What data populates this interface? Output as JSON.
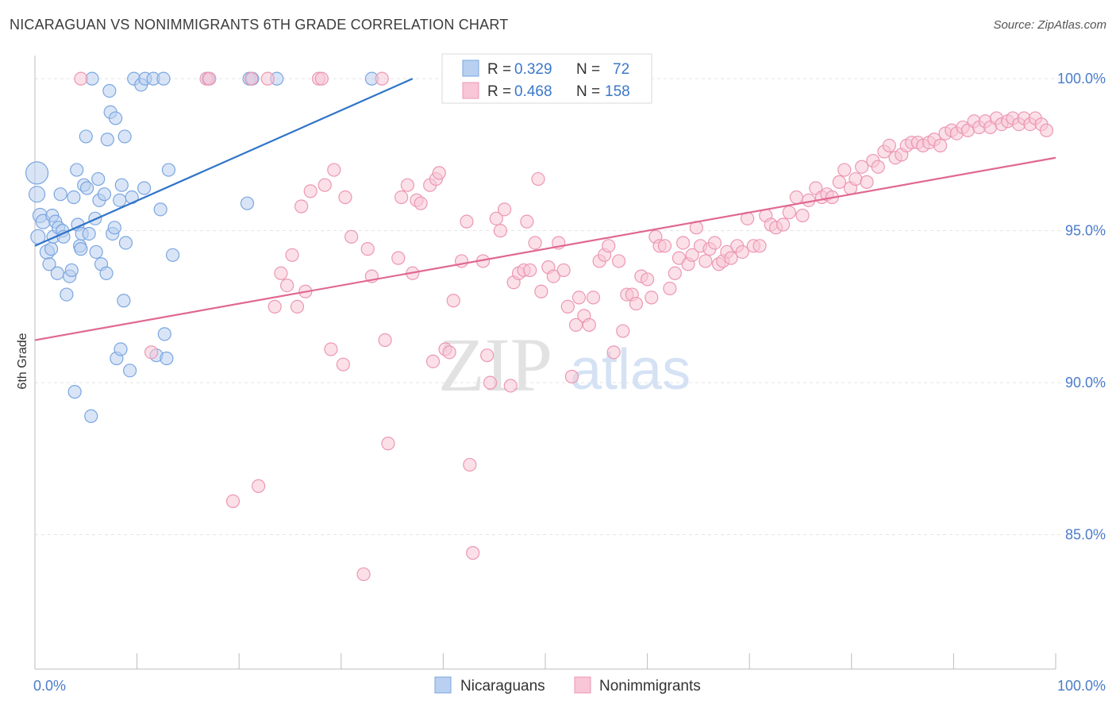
{
  "title": "NICARAGUAN VS NONIMMIGRANTS 6TH GRADE CORRELATION CHART",
  "source": "Source: ZipAtlas.com",
  "colors": {
    "blue": "#7aa6e0",
    "blue_fill": "#b9d0f0",
    "blue_line": "#2f74c8",
    "pink": "#ec97b4",
    "pink_fill": "#f8c6d6",
    "pink_line": "#e06892",
    "tick_text": "#4a7cc9",
    "grid": "#e3e3e3"
  },
  "legend": {
    "rows": [
      {
        "r_label": "R =",
        "r_value": "0.329",
        "n_label": "N =",
        "n_value": "72"
      },
      {
        "r_label": "R =",
        "r_value": "0.468",
        "n_label": "N =",
        "n_value": "158"
      }
    ]
  },
  "watermark": {
    "zip": "ZIP",
    "atlas": "atlas"
  },
  "chart_data": {
    "type": "scatter",
    "xlabel": "",
    "ylabel": "6th Grade",
    "xlim": [
      0,
      100
    ],
    "ylim": [
      80.5,
      100.5
    ],
    "x_tick_labels": [
      "0.0%",
      "100.0%"
    ],
    "y_ticks": [
      85,
      90,
      95,
      100
    ],
    "y_tick_labels": [
      "85.0%",
      "90.0%",
      "95.0%",
      "100.0%"
    ],
    "grid": true,
    "legend_position": "bottom-center",
    "series": [
      {
        "name": "Nicaraguans",
        "r": 0.329,
        "n": 72,
        "trend": {
          "x0": 0,
          "y0": 94.5,
          "x1": 37,
          "y1": 100.0
        },
        "points": [
          [
            0.2,
            96.9,
            14
          ],
          [
            0.2,
            96.2,
            10
          ],
          [
            0.3,
            94.8,
            9
          ],
          [
            0.5,
            95.5,
            9
          ],
          [
            0.8,
            95.3,
            9
          ],
          [
            1.2,
            94.3,
            9
          ],
          [
            1.4,
            93.9,
            8
          ],
          [
            1.6,
            94.4,
            8
          ],
          [
            1.7,
            95.5,
            8
          ],
          [
            1.8,
            94.8,
            8
          ],
          [
            2.0,
            95.3,
            8
          ],
          [
            2.2,
            93.6,
            8
          ],
          [
            2.3,
            95.1,
            8
          ],
          [
            2.5,
            96.2,
            8
          ],
          [
            2.7,
            95.0,
            8
          ],
          [
            2.8,
            94.8,
            8
          ],
          [
            3.1,
            92.9,
            8
          ],
          [
            3.4,
            93.5,
            8
          ],
          [
            3.6,
            93.7,
            8
          ],
          [
            3.8,
            96.1,
            8
          ],
          [
            3.9,
            89.7,
            8
          ],
          [
            4.1,
            97.0,
            8
          ],
          [
            4.2,
            95.2,
            8
          ],
          [
            4.4,
            94.5,
            8
          ],
          [
            4.5,
            94.4,
            8
          ],
          [
            4.6,
            94.9,
            8
          ],
          [
            4.8,
            96.5,
            8
          ],
          [
            5.0,
            98.1,
            8
          ],
          [
            5.1,
            96.4,
            8
          ],
          [
            5.3,
            94.9,
            8
          ],
          [
            5.5,
            88.9,
            8
          ],
          [
            5.6,
            100.0,
            8
          ],
          [
            5.9,
            95.4,
            8
          ],
          [
            6.0,
            94.3,
            8
          ],
          [
            6.2,
            96.7,
            8
          ],
          [
            6.3,
            96.0,
            8
          ],
          [
            6.5,
            93.9,
            8
          ],
          [
            6.8,
            96.2,
            8
          ],
          [
            7.0,
            93.6,
            8
          ],
          [
            7.1,
            98.0,
            8
          ],
          [
            7.3,
            99.6,
            8
          ],
          [
            7.4,
            98.9,
            8
          ],
          [
            7.6,
            94.9,
            8
          ],
          [
            7.8,
            95.1,
            8
          ],
          [
            7.9,
            98.7,
            8
          ],
          [
            8.0,
            90.8,
            8
          ],
          [
            8.3,
            96.0,
            8
          ],
          [
            8.4,
            91.1,
            8
          ],
          [
            8.5,
            96.5,
            8
          ],
          [
            8.7,
            92.7,
            8
          ],
          [
            8.8,
            98.1,
            8
          ],
          [
            8.9,
            94.6,
            8
          ],
          [
            9.3,
            90.4,
            8
          ],
          [
            9.5,
            96.1,
            8
          ],
          [
            9.7,
            100.0,
            8
          ],
          [
            10.4,
            99.8,
            8
          ],
          [
            10.7,
            96.4,
            8
          ],
          [
            10.8,
            100.0,
            8
          ],
          [
            11.6,
            100.0,
            8
          ],
          [
            11.9,
            90.9,
            8
          ],
          [
            12.3,
            95.7,
            8
          ],
          [
            12.6,
            100.0,
            8
          ],
          [
            12.7,
            91.6,
            8
          ],
          [
            12.9,
            90.8,
            8
          ],
          [
            13.1,
            97.0,
            8
          ],
          [
            13.5,
            94.2,
            8
          ],
          [
            17.0,
            100.0,
            8
          ],
          [
            20.8,
            95.9,
            8
          ],
          [
            21.0,
            100.0,
            8
          ],
          [
            21.3,
            100.0,
            8
          ],
          [
            23.7,
            100.0,
            8
          ],
          [
            33.0,
            100.0,
            8
          ]
        ]
      },
      {
        "name": "Nonimmigrants",
        "r": 0.468,
        "n": 158,
        "trend": {
          "x0": 0,
          "y0": 91.4,
          "x1": 100,
          "y1": 97.4
        },
        "points": [
          [
            4.5,
            100.0,
            8
          ],
          [
            11.4,
            91.0,
            8
          ],
          [
            16.8,
            100.0,
            8
          ],
          [
            17.1,
            100.0,
            8
          ],
          [
            19.4,
            86.1,
            8
          ],
          [
            21.2,
            100.0,
            8
          ],
          [
            21.9,
            86.6,
            8
          ],
          [
            22.8,
            100.0,
            8
          ],
          [
            23.5,
            92.5,
            8
          ],
          [
            24.1,
            93.6,
            8
          ],
          [
            24.7,
            93.2,
            8
          ],
          [
            25.2,
            94.2,
            8
          ],
          [
            25.7,
            92.5,
            8
          ],
          [
            26.1,
            95.8,
            8
          ],
          [
            26.5,
            93.0,
            8
          ],
          [
            27.0,
            96.3,
            8
          ],
          [
            27.8,
            100.0,
            8
          ],
          [
            28.1,
            100.0,
            8
          ],
          [
            28.4,
            96.5,
            8
          ],
          [
            29.0,
            91.1,
            8
          ],
          [
            29.3,
            97.0,
            8
          ],
          [
            30.2,
            90.6,
            8
          ],
          [
            30.4,
            96.1,
            8
          ],
          [
            31.0,
            94.8,
            8
          ],
          [
            32.2,
            83.7,
            8
          ],
          [
            32.6,
            94.4,
            8
          ],
          [
            33.0,
            93.5,
            8
          ],
          [
            34.0,
            100.0,
            8
          ],
          [
            34.3,
            91.4,
            8
          ],
          [
            34.6,
            88.0,
            8
          ],
          [
            35.6,
            94.1,
            8
          ],
          [
            35.9,
            96.1,
            8
          ],
          [
            36.5,
            96.5,
            8
          ],
          [
            37.0,
            93.6,
            8
          ],
          [
            37.4,
            96.0,
            8
          ],
          [
            37.8,
            95.9,
            8
          ],
          [
            38.7,
            96.5,
            8
          ],
          [
            39.0,
            90.7,
            8
          ],
          [
            39.3,
            96.7,
            8
          ],
          [
            39.6,
            96.9,
            8
          ],
          [
            40.2,
            91.1,
            8
          ],
          [
            40.6,
            91.0,
            8
          ],
          [
            41.0,
            92.7,
            8
          ],
          [
            41.8,
            94.0,
            8
          ],
          [
            42.3,
            95.3,
            8
          ],
          [
            42.6,
            87.3,
            8
          ],
          [
            42.9,
            84.4,
            8
          ],
          [
            43.9,
            94.0,
            8
          ],
          [
            44.3,
            90.9,
            8
          ],
          [
            44.6,
            90.0,
            8
          ],
          [
            45.2,
            95.4,
            8
          ],
          [
            45.6,
            95.0,
            8
          ],
          [
            46.0,
            95.7,
            8
          ],
          [
            46.6,
            89.9,
            8
          ],
          [
            46.9,
            93.3,
            8
          ],
          [
            47.4,
            93.6,
            8
          ],
          [
            47.9,
            93.7,
            8
          ],
          [
            48.2,
            95.3,
            8
          ],
          [
            48.5,
            93.7,
            8
          ],
          [
            49.0,
            94.6,
            8
          ],
          [
            49.3,
            96.7,
            8
          ],
          [
            49.6,
            93.0,
            8
          ],
          [
            50.3,
            93.8,
            8
          ],
          [
            50.8,
            93.5,
            8
          ],
          [
            51.3,
            94.6,
            8
          ],
          [
            51.8,
            93.7,
            8
          ],
          [
            52.2,
            92.5,
            8
          ],
          [
            52.6,
            90.2,
            8
          ],
          [
            53.0,
            91.9,
            8
          ],
          [
            53.3,
            92.8,
            8
          ],
          [
            53.8,
            92.2,
            8
          ],
          [
            54.3,
            91.9,
            8
          ],
          [
            54.7,
            92.8,
            8
          ],
          [
            55.3,
            94.0,
            8
          ],
          [
            55.8,
            94.2,
            8
          ],
          [
            56.2,
            94.5,
            8
          ],
          [
            56.7,
            91.0,
            8
          ],
          [
            57.2,
            94.0,
            8
          ],
          [
            57.6,
            91.7,
            8
          ],
          [
            58.0,
            92.9,
            8
          ],
          [
            58.5,
            92.9,
            8
          ],
          [
            58.9,
            92.6,
            8
          ],
          [
            59.4,
            93.5,
            8
          ],
          [
            60.0,
            93.4,
            8
          ],
          [
            60.4,
            92.8,
            8
          ],
          [
            60.8,
            94.8,
            8
          ],
          [
            61.2,
            94.5,
            8
          ],
          [
            61.7,
            94.5,
            8
          ],
          [
            62.2,
            93.1,
            8
          ],
          [
            62.7,
            93.6,
            8
          ],
          [
            63.1,
            94.1,
            8
          ],
          [
            63.5,
            94.6,
            8
          ],
          [
            64.0,
            93.9,
            8
          ],
          [
            64.4,
            94.2,
            8
          ],
          [
            64.8,
            95.1,
            8
          ],
          [
            65.2,
            94.5,
            8
          ],
          [
            65.7,
            94.0,
            8
          ],
          [
            66.1,
            94.4,
            8
          ],
          [
            66.6,
            94.6,
            8
          ],
          [
            67.0,
            93.9,
            8
          ],
          [
            67.4,
            94.0,
            8
          ],
          [
            67.8,
            94.3,
            8
          ],
          [
            68.2,
            94.1,
            8
          ],
          [
            68.8,
            94.5,
            8
          ],
          [
            69.3,
            94.3,
            8
          ],
          [
            69.8,
            95.4,
            8
          ],
          [
            70.4,
            94.5,
            8
          ],
          [
            71.0,
            94.5,
            8
          ],
          [
            71.6,
            95.5,
            8
          ],
          [
            72.1,
            95.2,
            8
          ],
          [
            72.6,
            95.1,
            8
          ],
          [
            73.3,
            95.2,
            8
          ],
          [
            73.9,
            95.6,
            8
          ],
          [
            74.6,
            96.1,
            8
          ],
          [
            75.2,
            95.5,
            8
          ],
          [
            75.8,
            96.0,
            8
          ],
          [
            76.5,
            96.4,
            8
          ],
          [
            77.1,
            96.1,
            8
          ],
          [
            77.6,
            96.2,
            8
          ],
          [
            78.1,
            96.1,
            8
          ],
          [
            78.8,
            96.6,
            8
          ],
          [
            79.3,
            97.0,
            8
          ],
          [
            79.9,
            96.4,
            8
          ],
          [
            80.4,
            96.7,
            8
          ],
          [
            81.0,
            97.1,
            8
          ],
          [
            81.5,
            96.6,
            8
          ],
          [
            82.1,
            97.3,
            8
          ],
          [
            82.6,
            97.1,
            8
          ],
          [
            83.2,
            97.6,
            8
          ],
          [
            83.7,
            97.8,
            8
          ],
          [
            84.3,
            97.4,
            8
          ],
          [
            84.9,
            97.5,
            8
          ],
          [
            85.4,
            97.8,
            8
          ],
          [
            85.9,
            97.9,
            8
          ],
          [
            86.5,
            97.9,
            8
          ],
          [
            87.0,
            97.8,
            8
          ],
          [
            87.6,
            97.9,
            8
          ],
          [
            88.1,
            98.0,
            8
          ],
          [
            88.7,
            97.8,
            8
          ],
          [
            89.2,
            98.2,
            8
          ],
          [
            89.8,
            98.3,
            8
          ],
          [
            90.3,
            98.2,
            8
          ],
          [
            90.9,
            98.4,
            8
          ],
          [
            91.4,
            98.3,
            8
          ],
          [
            92.0,
            98.6,
            8
          ],
          [
            92.5,
            98.4,
            8
          ],
          [
            93.1,
            98.6,
            8
          ],
          [
            93.6,
            98.4,
            8
          ],
          [
            94.2,
            98.7,
            8
          ],
          [
            94.7,
            98.5,
            8
          ],
          [
            95.3,
            98.6,
            8
          ],
          [
            95.8,
            98.7,
            8
          ],
          [
            96.4,
            98.5,
            8
          ],
          [
            96.9,
            98.7,
            8
          ],
          [
            97.5,
            98.5,
            8
          ],
          [
            98.0,
            98.7,
            8
          ],
          [
            98.6,
            98.5,
            8
          ],
          [
            99.1,
            98.3,
            8
          ]
        ]
      }
    ]
  }
}
